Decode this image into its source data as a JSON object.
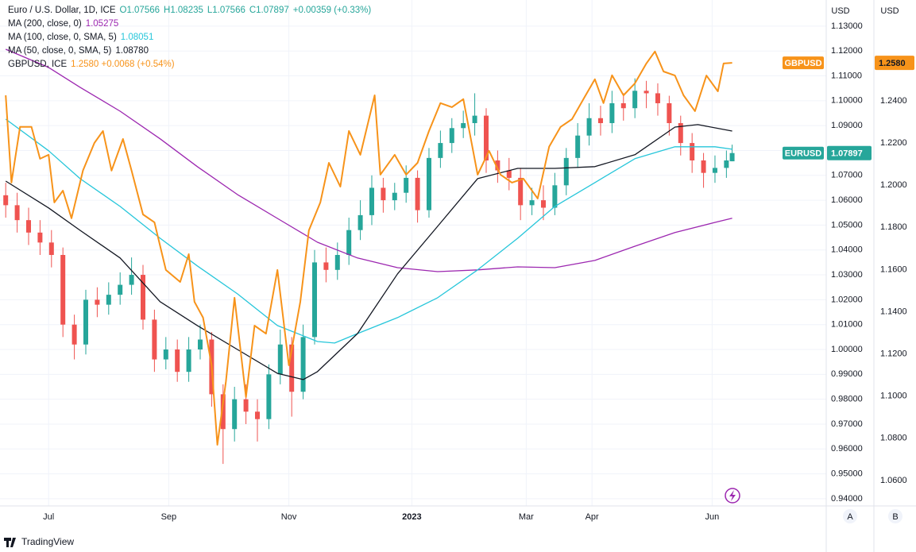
{
  "chart_data": {
    "type": "candlestick",
    "title": "Euro / U.S. Dollar, 1D, ICE",
    "header_values": [
      "O1.07566",
      "H1.08235",
      "L1.07566",
      "C1.07897",
      "+0.00359 (+0.33%)"
    ],
    "tag": "EURUSD",
    "y_unit": "USD",
    "y2_unit": "USD",
    "scale_buttons": [
      "A",
      "B"
    ],
    "branding": "TradingView",
    "up_color": "#26a69a",
    "down_color": "#ef5350",
    "grid": true,
    "x": [
      0,
      4,
      8,
      12,
      16,
      20,
      24,
      28,
      32,
      36,
      40,
      44,
      48,
      52,
      56,
      60,
      64,
      68,
      72,
      76,
      80,
      84,
      88,
      92,
      96,
      100,
      104,
      108,
      112,
      116,
      120,
      124,
      128,
      132,
      136,
      140,
      144,
      148,
      152,
      156,
      160,
      164,
      168,
      172,
      176,
      180,
      184,
      188,
      192,
      196,
      200,
      204,
      208,
      212,
      216,
      220,
      224,
      228,
      232,
      236,
      240,
      244,
      248,
      252,
      254
    ],
    "open": [
      1.062,
      1.058,
      1.052,
      1.047,
      1.043,
      1.038,
      1.01,
      1.002,
      1.02,
      1.018,
      1.022,
      1.026,
      1.03,
      1.012,
      0.996,
      1.0,
      0.991,
      1.0,
      1.004,
      0.982,
      0.968,
      0.98,
      0.975,
      0.972,
      0.99,
      1.002,
      0.983,
      1.005,
      1.035,
      1.032,
      1.038,
      1.048,
      1.054,
      1.065,
      1.06,
      1.063,
      1.069,
      1.056,
      1.077,
      1.083,
      1.089,
      1.091,
      1.094,
      1.076,
      1.072,
      1.069,
      1.058,
      1.06,
      1.057,
      1.066,
      1.077,
      1.086,
      1.093,
      1.091,
      1.099,
      1.097,
      1.104,
      1.103,
      1.099,
      1.091,
      1.083,
      1.076,
      1.071,
      1.073,
      1.07566
    ],
    "high": [
      1.067,
      1.063,
      1.057,
      1.052,
      1.048,
      1.041,
      1.014,
      1.024,
      1.025,
      1.027,
      1.031,
      1.037,
      1.034,
      1.016,
      1.005,
      1.004,
      1.005,
      1.01,
      1.007,
      0.986,
      0.985,
      0.986,
      0.98,
      0.994,
      1.008,
      1.005,
      1.01,
      1.04,
      1.041,
      1.043,
      1.053,
      1.06,
      1.07,
      1.069,
      1.067,
      1.074,
      1.072,
      1.081,
      1.088,
      1.093,
      1.096,
      1.103,
      1.097,
      1.08,
      1.077,
      1.073,
      1.065,
      1.066,
      1.071,
      1.081,
      1.091,
      1.099,
      1.098,
      1.104,
      1.103,
      1.109,
      1.108,
      1.107,
      1.102,
      1.094,
      1.087,
      1.079,
      1.078,
      1.08,
      1.08235
    ],
    "low": [
      1.053,
      1.047,
      1.042,
      1.038,
      1.033,
      1.005,
      0.996,
      0.998,
      1.013,
      1.014,
      1.018,
      1.022,
      1.008,
      0.991,
      0.992,
      0.987,
      0.987,
      0.996,
      0.977,
      0.954,
      0.963,
      0.97,
      0.963,
      0.968,
      0.986,
      0.973,
      0.98,
      1.002,
      1.027,
      1.028,
      1.034,
      1.044,
      1.05,
      1.055,
      1.056,
      1.059,
      1.051,
      1.053,
      1.073,
      1.079,
      1.085,
      1.086,
      1.071,
      1.067,
      1.064,
      1.052,
      1.054,
      1.052,
      1.054,
      1.062,
      1.073,
      1.082,
      1.086,
      1.087,
      1.092,
      1.093,
      1.097,
      1.094,
      1.086,
      1.078,
      1.071,
      1.065,
      1.067,
      1.069,
      1.07566
    ],
    "close": [
      1.058,
      1.052,
      1.047,
      1.043,
      1.038,
      1.01,
      1.002,
      1.02,
      1.018,
      1.022,
      1.026,
      1.03,
      1.012,
      0.996,
      1.0,
      0.991,
      1.0,
      1.004,
      0.982,
      0.968,
      0.98,
      0.975,
      0.972,
      0.99,
      1.002,
      0.983,
      1.005,
      1.035,
      1.032,
      1.038,
      1.048,
      1.054,
      1.065,
      1.06,
      1.063,
      1.069,
      1.056,
      1.077,
      1.083,
      1.089,
      1.091,
      1.094,
      1.076,
      1.072,
      1.069,
      1.058,
      1.06,
      1.057,
      1.066,
      1.077,
      1.086,
      1.093,
      1.091,
      1.099,
      1.097,
      1.104,
      1.103,
      1.099,
      1.091,
      1.083,
      1.076,
      1.071,
      1.073,
      1.076,
      1.07897
    ],
    "overlays": [
      {
        "name": "MA (200, close, 0)",
        "last_label": "1.05275",
        "color": "#9c27b0",
        "axis": "y",
        "x": [
          0,
          15,
          26,
          40,
          54,
          67,
          81,
          95,
          109,
          123,
          137,
          151,
          165,
          179,
          192,
          206,
          220,
          234,
          248,
          254
        ],
        "values": [
          1.1207,
          1.1134,
          1.1054,
          1.0958,
          1.0847,
          1.0735,
          1.0623,
          1.0527,
          1.0431,
          1.0368,
          1.0329,
          1.0313,
          1.032,
          1.0332,
          1.0329,
          1.0358,
          1.0415,
          1.047,
          1.0511,
          1.05275
        ]
      },
      {
        "name": "MA (100, close, 0, SMA, 5)",
        "last_label": "1.08051",
        "color": "#26c6da",
        "axis": "y",
        "x": [
          0,
          15,
          26,
          40,
          54,
          67,
          81,
          95,
          109,
          115,
          123,
          137,
          151,
          165,
          179,
          192,
          206,
          220,
          234,
          248,
          254
        ],
        "values": [
          1.0926,
          1.0799,
          1.0687,
          1.0575,
          1.0447,
          1.0336,
          1.0224,
          1.0096,
          1.0032,
          1.0026,
          1.0064,
          1.0128,
          1.0208,
          1.032,
          1.0447,
          1.0575,
          1.0671,
          1.0767,
          1.0815,
          1.0815,
          1.08051
        ]
      },
      {
        "name": "MA (50, close, 0, SMA, 5)",
        "last_label": "1.08780",
        "color": "#131722",
        "axis": "y",
        "x": [
          0,
          15,
          26,
          40,
          54,
          67,
          81,
          95,
          104,
          109,
          123,
          137,
          151,
          165,
          179,
          192,
          206,
          220,
          234,
          242,
          254
        ],
        "values": [
          1.0677,
          1.0569,
          1.0479,
          1.0368,
          1.0192,
          1.0096,
          1.0,
          0.9904,
          0.9879,
          0.9911,
          1.0064,
          1.0304,
          1.0495,
          1.0687,
          1.0728,
          1.0728,
          1.0735,
          1.0783,
          1.0894,
          1.0904,
          1.0878
        ]
      },
      {
        "name": "GBPUSD, ICE",
        "last_label": "1.2580 +0.0068 (+0.54%)",
        "tag": "GBPUSD",
        "price_label": "1.2580",
        "color": "#f7931a",
        "axis": "y2",
        "x": [
          0,
          2,
          5,
          9,
          12,
          15,
          17,
          20,
          23,
          27,
          31,
          34,
          37,
          41,
          44,
          48,
          52,
          56,
          61,
          64,
          66,
          69,
          72,
          74,
          77,
          80,
          84,
          87,
          91,
          95,
          99,
          103,
          106,
          110,
          113,
          117,
          120,
          124,
          129,
          131,
          136,
          140,
          144,
          148,
          152,
          156,
          160,
          165,
          169,
          173,
          177,
          181,
          186,
          190,
          194,
          198,
          202,
          206,
          209,
          212,
          216,
          220,
          224,
          227,
          230,
          234,
          237,
          241,
          245,
          249,
          251,
          254
        ],
        "values": [
          1.2426,
          1.2012,
          1.2276,
          1.2276,
          1.2125,
          1.2144,
          1.1918,
          1.1974,
          1.1843,
          1.2069,
          1.22,
          1.2257,
          1.2069,
          1.2219,
          1.2069,
          1.1861,
          1.1824,
          1.1598,
          1.1541,
          1.1673,
          1.1447,
          1.1372,
          1.1146,
          1.0769,
          1.107,
          1.1466,
          1.0995,
          1.1334,
          1.1296,
          1.1598,
          1.1146,
          1.1447,
          1.1786,
          1.1918,
          1.2106,
          1.1993,
          1.2257,
          1.2144,
          1.2426,
          1.205,
          1.2144,
          1.205,
          1.2106,
          1.2257,
          1.2389,
          1.237,
          1.2408,
          1.205,
          1.2163,
          1.205,
          1.2012,
          1.2031,
          1.1937,
          1.2182,
          1.2276,
          1.2313,
          1.2408,
          1.2502,
          1.2389,
          1.2521,
          1.2426,
          1.2483,
          1.2577,
          1.2634,
          1.2539,
          1.252,
          1.2426,
          1.2351,
          1.252,
          1.2445,
          1.2577,
          1.258
        ]
      }
    ],
    "xlim": [
      -2,
      286.9
    ],
    "xticks": [
      {
        "value": 15,
        "label": "Jul"
      },
      {
        "value": 57,
        "label": "Sep"
      },
      {
        "value": 99,
        "label": "Nov"
      },
      {
        "value": 142,
        "label": "2023"
      },
      {
        "value": 182,
        "label": "Mar"
      },
      {
        "value": 205,
        "label": "Apr"
      },
      {
        "value": 247,
        "label": "Jun"
      }
    ],
    "ylim": [
      0.9371,
      1.1405
    ],
    "yticks": [
      {
        "value": 0.94,
        "label": "0.94000"
      },
      {
        "value": 0.95,
        "label": "0.95000"
      },
      {
        "value": 0.96,
        "label": "0.96000"
      },
      {
        "value": 0.97,
        "label": "0.97000"
      },
      {
        "value": 0.98,
        "label": "0.98000"
      },
      {
        "value": 0.99,
        "label": "0.99000"
      },
      {
        "value": 1.0,
        "label": "1.00000"
      },
      {
        "value": 1.01,
        "label": "1.01000"
      },
      {
        "value": 1.02,
        "label": "1.02000"
      },
      {
        "value": 1.03,
        "label": "1.03000"
      },
      {
        "value": 1.04,
        "label": "1.04000"
      },
      {
        "value": 1.05,
        "label": "1.05000"
      },
      {
        "value": 1.06,
        "label": "1.06000"
      },
      {
        "value": 1.07,
        "label": "1.07000"
      },
      {
        "value": 1.08,
        "label": "1.08000"
      },
      {
        "value": 1.09,
        "label": "1.09000"
      },
      {
        "value": 1.1,
        "label": "1.10000"
      },
      {
        "value": 1.11,
        "label": "1.11000"
      },
      {
        "value": 1.12,
        "label": "1.12000"
      },
      {
        "value": 1.13,
        "label": "1.13000"
      }
    ],
    "y2lim": [
      1.0479,
      1.2878
    ],
    "y2ticks": [
      {
        "value": 1.06,
        "label": "1.0600"
      },
      {
        "value": 1.08,
        "label": "1.0800"
      },
      {
        "value": 1.1,
        "label": "1.1000"
      },
      {
        "value": 1.12,
        "label": "1.1200"
      },
      {
        "value": 1.14,
        "label": "1.1400"
      },
      {
        "value": 1.16,
        "label": "1.1600"
      },
      {
        "value": 1.18,
        "label": "1.1800"
      },
      {
        "value": 1.2,
        "label": "1.2000"
      },
      {
        "value": 1.22,
        "label": "1.2200"
      },
      {
        "value": 1.24,
        "label": "1.2400"
      }
    ]
  }
}
